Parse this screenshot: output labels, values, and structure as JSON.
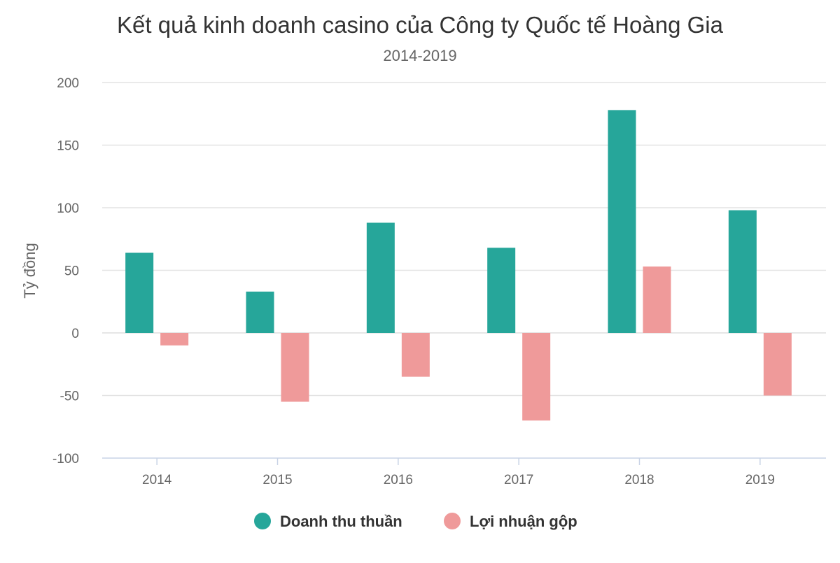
{
  "chart_data": {
    "type": "bar",
    "title": "Kết quả kinh doanh casino của Công ty Quốc tế Hoàng Gia",
    "subtitle": "2014-2019",
    "xlabel": "",
    "ylabel": "Tỷ đồng",
    "categories": [
      "2014",
      "2015",
      "2016",
      "2017",
      "2018",
      "2019"
    ],
    "series": [
      {
        "name": "Doanh thu thuần",
        "color": "#26a69a",
        "values": [
          64,
          33,
          88,
          68,
          178,
          98
        ]
      },
      {
        "name": "Lợi nhuận gộp",
        "color": "#ef9a9a",
        "values": [
          -10,
          -55,
          -35,
          -70,
          53,
          -50
        ]
      }
    ],
    "ylim": [
      -100,
      200
    ],
    "yticks": [
      -100,
      -50,
      0,
      50,
      100,
      150,
      200
    ],
    "grid": true,
    "legend_position": "bottom-center"
  }
}
